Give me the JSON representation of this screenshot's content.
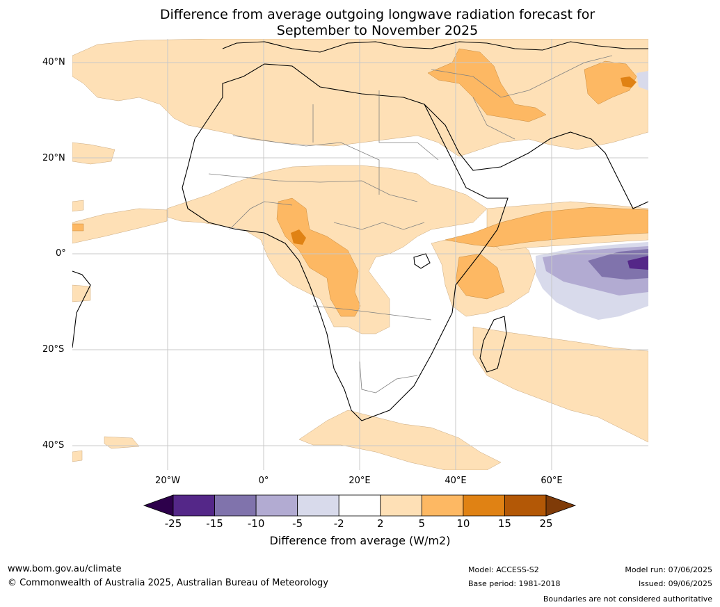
{
  "header": {
    "title_line1": "Difference from average outgoing longwave radiation forecast for",
    "title_line2": "September to November 2025"
  },
  "map": {
    "lat_labels": [
      "40°N",
      "20°N",
      "0°",
      "20°S",
      "40°S"
    ],
    "lon_labels": [
      "20°W",
      "0°",
      "20°E",
      "40°E",
      "60°E"
    ],
    "colors": {
      "ocean_bg": "#ffffff",
      "neutral": "#ffffff",
      "pos_2_5": "#fee0b6",
      "pos_5_10": "#fdb863",
      "pos_10_15": "#e08214",
      "pos_15_25": "#b35806",
      "neg_2_5": "#d8daeb",
      "neg_5_10": "#b2abd2",
      "neg_10_15": "#8073ac",
      "neg_15_25": "#542788",
      "coast": "#000000",
      "border": "#808080",
      "grid": "#c8c8c8"
    }
  },
  "colorbar": {
    "ticks": [
      "-25",
      "-15",
      "-10",
      "-5",
      "-2",
      "2",
      "5",
      "10",
      "15",
      "25"
    ],
    "colors": [
      "#2d004b",
      "#542788",
      "#8073ac",
      "#b2abd2",
      "#d8daeb",
      "#ffffff",
      "#fee0b6",
      "#fdb863",
      "#e08214",
      "#b35806",
      "#7f3b08"
    ],
    "label": "Difference from average (W/m2)"
  },
  "footer": {
    "website": "www.bom.gov.au/climate",
    "copyright": "© Commonwealth of Australia 2025, Australian Bureau of Meteorology",
    "model": "Model: ACCESS-S2",
    "base_period": "Base period: 1981-2018",
    "model_run": "Model run: 07/06/2025",
    "issued": "Issued: 09/06/2025",
    "disclaimer": "Boundaries are not considered authoritative"
  }
}
